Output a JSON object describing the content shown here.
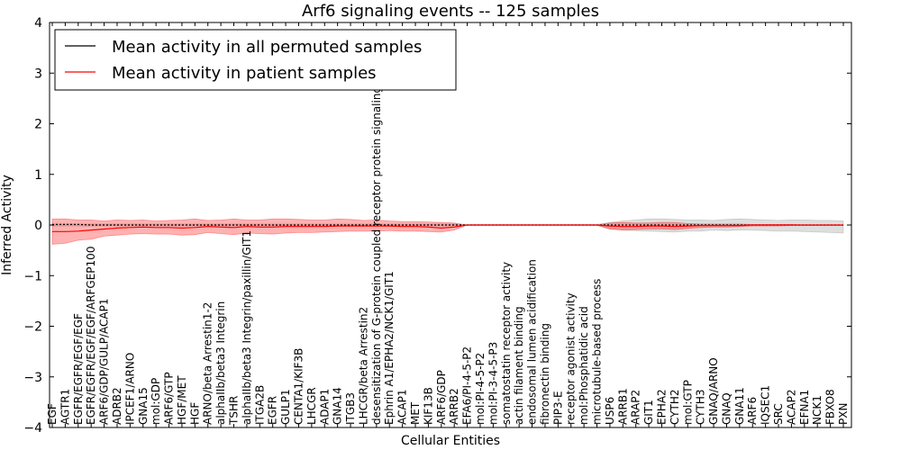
{
  "chart_data": {
    "type": "line",
    "title": "Arf6 signaling events -- 125 samples",
    "xlabel": "Cellular Entities",
    "ylabel": "Inferred Activity",
    "ylim": [
      -4,
      4
    ],
    "yticks": [
      -4,
      -3,
      -2,
      -1,
      0,
      1,
      2,
      3,
      4
    ],
    "ytick_labels": [
      "−4",
      "−3",
      "−2",
      "−1",
      "0",
      "1",
      "2",
      "3",
      "4"
    ],
    "legend": {
      "position": "top-left",
      "entries": [
        {
          "label": "Mean activity in all permuted samples",
          "color": "#000000"
        },
        {
          "label": "Mean activity in patient samples",
          "color": "#ff0000"
        }
      ]
    },
    "categories": [
      "EGF",
      "AGTR1",
      "EGFR/EGFR/EGF/EGF",
      "EGFR/EGFR/EGF/EGF/ARFGEP100",
      "ARF6/GDP/GULP/ACAP1",
      "ADRB2",
      "IPCEF1/ARNO",
      "GNA15",
      "mol:GDP",
      "ARF6/GTP",
      "HGF/MET",
      "HGF",
      "ARNO/beta Arrestin1-2",
      "alphaIIb/beta3 Integrin",
      "TSHR",
      "alphaIIb/beta3 Integrin/paxillin/GIT1",
      "ITGA2B",
      "EGFR",
      "GULP1",
      "CENTA1/KIF3B",
      "LHCGR",
      "ADAP1",
      "GNA14",
      "ITGB3",
      "LHCGR/beta Arrestin2",
      "desensitization of G-protein coupled receptor protein signaling pathway",
      "Ephrin A1/EPHA2/NCK1/GIT1",
      "ACAP1",
      "MET",
      "KIF13B",
      "ARF6/GDP",
      "ARRB2",
      "EFA6/PI-4-5-P2",
      "mol:PI-4-5-P2",
      "mol:PI-3-4-5-P3",
      "somatostatin receptor activity",
      "actin filament binding",
      "endosomal lumen acidification",
      "fibronectin binding",
      "PIP3-E",
      "receptor agonist activity",
      "mol:Phosphatidic acid",
      "microtubule-based process",
      "USP6",
      "ARRB1",
      "ARAP2",
      "GIT1",
      "EPHA2",
      "CYTH2",
      "mol:GTP",
      "CYTH3",
      "GNAQ/ARNO",
      "GNAQ",
      "GNA11",
      "ARF6",
      "IQSEC1",
      "SRC",
      "ACAP2",
      "EFNA1",
      "NCK1",
      "FBXO8",
      "PXN"
    ],
    "series": [
      {
        "name": "Mean activity in all permuted samples",
        "color": "#000000",
        "style": "dashed",
        "values": [
          0.01,
          0.01,
          0.01,
          0.0,
          0.0,
          0.0,
          0.0,
          0.0,
          0.0,
          0.0,
          0.0,
          0.0,
          0.0,
          0.0,
          0.0,
          0.0,
          0.0,
          0.0,
          0.0,
          0.0,
          0.0,
          0.0,
          0.0,
          0.0,
          0.0,
          0.0,
          0.0,
          0.0,
          0.0,
          0.0,
          0.0,
          0.0,
          0.0,
          0.0,
          0.0,
          0.0,
          0.0,
          0.0,
          0.0,
          0.0,
          0.0,
          0.0,
          0.0,
          0.0,
          0.0,
          0.0,
          0.0,
          0.0,
          0.0,
          0.0,
          0.0,
          0.0,
          0.0,
          0.0,
          0.0,
          0.0,
          0.0,
          0.0,
          0.0,
          0.0,
          0.0,
          0.0
        ],
        "band_upper": [
          0.02,
          0.02,
          0.02,
          0.02,
          0.02,
          0.02,
          0.02,
          0.02,
          0.02,
          0.02,
          0.02,
          0.02,
          0.02,
          0.02,
          0.02,
          0.02,
          0.02,
          0.02,
          0.02,
          0.02,
          0.02,
          0.02,
          0.02,
          0.02,
          0.02,
          0.02,
          0.02,
          0.02,
          0.02,
          0.02,
          0.02,
          0.02,
          0.01,
          0.01,
          0.01,
          0.01,
          0.01,
          0.01,
          0.01,
          0.01,
          0.01,
          0.01,
          0.01,
          0.05,
          0.08,
          0.1,
          0.12,
          0.12,
          0.11,
          0.1,
          0.1,
          0.09,
          0.11,
          0.12,
          0.11,
          0.1,
          0.09,
          0.1,
          0.1,
          0.09,
          0.09,
          0.08
        ],
        "band_lower": [
          -0.02,
          -0.02,
          -0.02,
          -0.02,
          -0.02,
          -0.02,
          -0.02,
          -0.02,
          -0.02,
          -0.02,
          -0.02,
          -0.02,
          -0.02,
          -0.02,
          -0.02,
          -0.02,
          -0.02,
          -0.02,
          -0.02,
          -0.02,
          -0.02,
          -0.02,
          -0.02,
          -0.02,
          -0.02,
          -0.02,
          -0.02,
          -0.02,
          -0.02,
          -0.02,
          -0.02,
          -0.02,
          -0.01,
          -0.01,
          -0.01,
          -0.01,
          -0.01,
          -0.01,
          -0.01,
          -0.01,
          -0.01,
          -0.01,
          -0.01,
          -0.08,
          -0.1,
          -0.11,
          -0.12,
          -0.13,
          -0.14,
          -0.12,
          -0.12,
          -0.1,
          -0.11,
          -0.1,
          -0.1,
          -0.11,
          -0.12,
          -0.12,
          -0.13,
          -0.14,
          -0.15,
          -0.16
        ]
      },
      {
        "name": "Mean activity in patient samples",
        "color": "#ff0000",
        "style": "solid",
        "values": [
          -0.13,
          -0.13,
          -0.12,
          -0.1,
          -0.08,
          -0.06,
          -0.05,
          -0.04,
          -0.05,
          -0.05,
          -0.06,
          -0.05,
          -0.03,
          -0.04,
          -0.05,
          -0.03,
          -0.04,
          -0.04,
          -0.03,
          -0.03,
          -0.03,
          -0.03,
          -0.02,
          -0.02,
          -0.02,
          -0.02,
          -0.02,
          -0.03,
          -0.03,
          -0.04,
          -0.06,
          -0.04,
          0.0,
          0.0,
          0.0,
          0.0,
          0.0,
          0.0,
          0.0,
          0.0,
          0.0,
          0.0,
          0.0,
          -0.02,
          -0.03,
          -0.03,
          -0.02,
          -0.02,
          -0.03,
          -0.02,
          -0.01,
          -0.01,
          -0.01,
          -0.01,
          0.0,
          0.0,
          0.0,
          0.0,
          0.0,
          0.0,
          0.0,
          0.0
        ],
        "band_upper": [
          0.12,
          0.12,
          0.1,
          0.1,
          0.08,
          0.1,
          0.09,
          0.1,
          0.08,
          0.09,
          0.1,
          0.12,
          0.09,
          0.1,
          0.12,
          0.1,
          0.1,
          0.12,
          0.12,
          0.11,
          0.1,
          0.1,
          0.12,
          0.11,
          0.09,
          0.1,
          0.08,
          0.07,
          0.07,
          0.06,
          0.05,
          0.04,
          0.0,
          0.0,
          0.0,
          0.0,
          0.0,
          0.0,
          0.0,
          0.0,
          0.0,
          0.0,
          0.0,
          0.04,
          0.05,
          0.04,
          0.04,
          0.05,
          0.05,
          0.03,
          0.02,
          0.02,
          0.02,
          0.02,
          0.01,
          0.01,
          0.01,
          0.01,
          0.0,
          0.0,
          0.0,
          0.0
        ],
        "band_lower": [
          -0.38,
          -0.36,
          -0.3,
          -0.28,
          -0.22,
          -0.2,
          -0.18,
          -0.17,
          -0.18,
          -0.18,
          -0.2,
          -0.19,
          -0.15,
          -0.17,
          -0.19,
          -0.16,
          -0.17,
          -0.18,
          -0.16,
          -0.15,
          -0.15,
          -0.14,
          -0.13,
          -0.12,
          -0.12,
          -0.12,
          -0.11,
          -0.12,
          -0.12,
          -0.13,
          -0.14,
          -0.1,
          0.0,
          0.0,
          0.0,
          0.0,
          0.0,
          0.0,
          0.0,
          0.0,
          0.0,
          0.0,
          0.0,
          -0.08,
          -0.1,
          -0.09,
          -0.08,
          -0.08,
          -0.09,
          -0.07,
          -0.05,
          -0.04,
          -0.04,
          -0.03,
          -0.02,
          -0.02,
          -0.02,
          -0.01,
          -0.01,
          -0.01,
          -0.01,
          -0.01
        ]
      }
    ]
  }
}
